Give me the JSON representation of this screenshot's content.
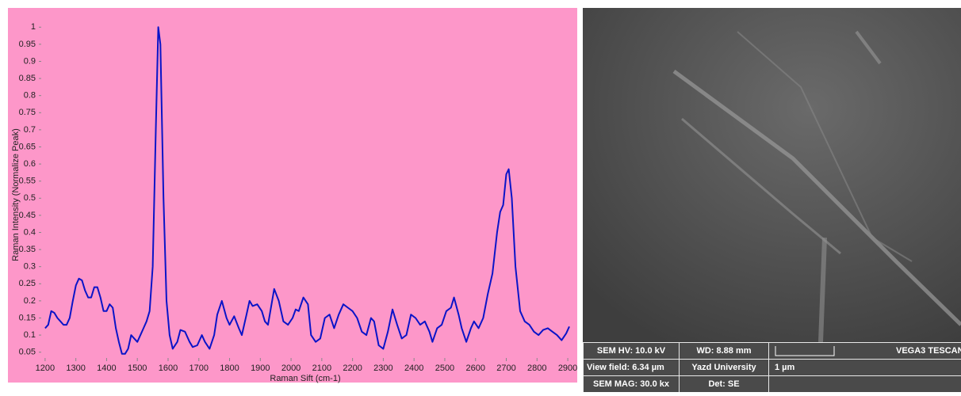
{
  "chart_data": {
    "type": "line",
    "x_label": "Raman Sift (cm-1)",
    "y_label": "Raman Intensity (Normalize Peak)",
    "x": [
      1200,
      1210,
      1220,
      1230,
      1240,
      1250,
      1260,
      1270,
      1280,
      1290,
      1300,
      1310,
      1320,
      1330,
      1340,
      1350,
      1360,
      1370,
      1380,
      1390,
      1400,
      1410,
      1420,
      1430,
      1440,
      1450,
      1460,
      1470,
      1480,
      1490,
      1500,
      1510,
      1520,
      1530,
      1540,
      1550,
      1560,
      1568,
      1575,
      1585,
      1595,
      1605,
      1615,
      1630,
      1640,
      1655,
      1670,
      1680,
      1695,
      1710,
      1720,
      1735,
      1750,
      1760,
      1775,
      1790,
      1800,
      1815,
      1830,
      1840,
      1855,
      1865,
      1875,
      1890,
      1905,
      1915,
      1925,
      1945,
      1960,
      1975,
      1990,
      2005,
      2015,
      2025,
      2040,
      2055,
      2065,
      2080,
      2095,
      2110,
      2125,
      2140,
      2155,
      2170,
      2185,
      2200,
      2215,
      2230,
      2245,
      2260,
      2270,
      2285,
      2300,
      2315,
      2330,
      2345,
      2360,
      2375,
      2390,
      2405,
      2420,
      2435,
      2450,
      2460,
      2475,
      2490,
      2505,
      2520,
      2530,
      2545,
      2555,
      2570,
      2585,
      2595,
      2610,
      2625,
      2640,
      2655,
      2670,
      2680,
      2690,
      2700,
      2708,
      2718,
      2730,
      2745,
      2760,
      2775,
      2790,
      2805,
      2820,
      2835,
      2850,
      2865,
      2880,
      2895,
      2905
    ],
    "series": [
      {
        "color": "#0a14c8",
        "values": [
          0.12,
          0.13,
          0.17,
          0.165,
          0.15,
          0.14,
          0.13,
          0.13,
          0.15,
          0.2,
          0.245,
          0.265,
          0.26,
          0.23,
          0.21,
          0.21,
          0.24,
          0.24,
          0.21,
          0.17,
          0.17,
          0.19,
          0.18,
          0.12,
          0.08,
          0.045,
          0.045,
          0.06,
          0.1,
          0.09,
          0.08,
          0.1,
          0.12,
          0.14,
          0.17,
          0.3,
          0.7,
          1.0,
          0.95,
          0.5,
          0.2,
          0.1,
          0.06,
          0.08,
          0.115,
          0.11,
          0.08,
          0.065,
          0.07,
          0.1,
          0.08,
          0.06,
          0.1,
          0.16,
          0.2,
          0.15,
          0.13,
          0.155,
          0.12,
          0.1,
          0.16,
          0.2,
          0.185,
          0.19,
          0.17,
          0.14,
          0.13,
          0.235,
          0.2,
          0.14,
          0.13,
          0.15,
          0.175,
          0.17,
          0.21,
          0.19,
          0.1,
          0.08,
          0.09,
          0.15,
          0.16,
          0.12,
          0.16,
          0.19,
          0.18,
          0.17,
          0.15,
          0.11,
          0.1,
          0.15,
          0.14,
          0.07,
          0.06,
          0.11,
          0.175,
          0.13,
          0.09,
          0.1,
          0.16,
          0.15,
          0.13,
          0.14,
          0.11,
          0.08,
          0.12,
          0.13,
          0.17,
          0.18,
          0.21,
          0.16,
          0.12,
          0.08,
          0.12,
          0.14,
          0.12,
          0.15,
          0.22,
          0.28,
          0.4,
          0.46,
          0.48,
          0.57,
          0.585,
          0.5,
          0.3,
          0.17,
          0.14,
          0.13,
          0.11,
          0.1,
          0.115,
          0.12,
          0.11,
          0.1,
          0.085,
          0.105,
          0.125
        ]
      }
    ],
    "xlim": [
      1190,
      2905
    ],
    "ylim": [
      0.04,
      1.04
    ],
    "xticks": [
      1200,
      1300,
      1400,
      1500,
      1600,
      1700,
      1800,
      1900,
      2000,
      2100,
      2200,
      2300,
      2400,
      2500,
      2600,
      2700,
      2800,
      2900
    ],
    "yticks": [
      0.05,
      0.1,
      0.15,
      0.2,
      0.25,
      0.3,
      0.35,
      0.4,
      0.45,
      0.5,
      0.55,
      0.6,
      0.65,
      0.7,
      0.75,
      0.8,
      0.85,
      0.9,
      0.95,
      1
    ],
    "background": "#fd97c9"
  },
  "sem_image": {
    "hv": "SEM HV: 10.0 kV",
    "wd": "WD: 8.88 mm",
    "brand": "VEGA3 TESCAN",
    "view_field": "View field: 6.34 µm",
    "lab": "Yazd University",
    "scale": "1 µm",
    "mag": "SEM MAG: 30.0 kx",
    "detector": "Det: SE"
  }
}
